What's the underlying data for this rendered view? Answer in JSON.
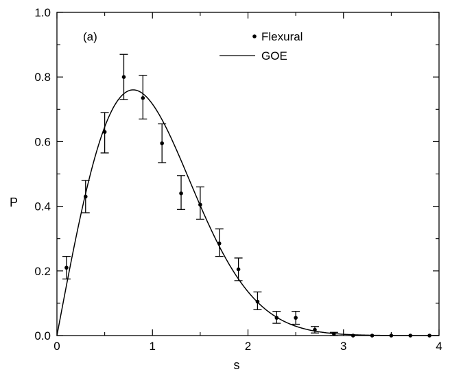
{
  "chart_data": {
    "type": "scatter",
    "panel_label": "(a)",
    "xlabel": "s",
    "ylabel": "P",
    "xlim": [
      0,
      4
    ],
    "ylim": [
      0,
      1.0
    ],
    "x_ticks": [
      0,
      1,
      2,
      3,
      4
    ],
    "x_tick_labels": [
      "0",
      "1",
      "2",
      "3",
      "4"
    ],
    "y_ticks": [
      0,
      0.2,
      0.4,
      0.6,
      0.8,
      1.0
    ],
    "y_tick_labels": [
      "0.0",
      "0.2",
      "0.4",
      "0.6",
      "0.8",
      "1.0"
    ],
    "legend_placement": "top-center",
    "grid": false,
    "series": [
      {
        "name": "Flexural",
        "kind": "points-with-errorbars",
        "color": "#000000",
        "points": [
          {
            "x": 0.1,
            "y": 0.21,
            "lo": 0.175,
            "hi": 0.245
          },
          {
            "x": 0.3,
            "y": 0.43,
            "lo": 0.38,
            "hi": 0.48
          },
          {
            "x": 0.5,
            "y": 0.63,
            "lo": 0.565,
            "hi": 0.69
          },
          {
            "x": 0.7,
            "y": 0.8,
            "lo": 0.73,
            "hi": 0.87
          },
          {
            "x": 0.9,
            "y": 0.735,
            "lo": 0.67,
            "hi": 0.805
          },
          {
            "x": 1.1,
            "y": 0.595,
            "lo": 0.535,
            "hi": 0.655
          },
          {
            "x": 1.3,
            "y": 0.44,
            "lo": 0.39,
            "hi": 0.495
          },
          {
            "x": 1.5,
            "y": 0.405,
            "lo": 0.36,
            "hi": 0.46
          },
          {
            "x": 1.7,
            "y": 0.285,
            "lo": 0.245,
            "hi": 0.33
          },
          {
            "x": 1.9,
            "y": 0.205,
            "lo": 0.17,
            "hi": 0.24
          },
          {
            "x": 2.1,
            "y": 0.105,
            "lo": 0.08,
            "hi": 0.135
          },
          {
            "x": 2.3,
            "y": 0.055,
            "lo": 0.038,
            "hi": 0.075
          },
          {
            "x": 2.5,
            "y": 0.055,
            "lo": 0.035,
            "hi": 0.075
          },
          {
            "x": 2.7,
            "y": 0.018,
            "lo": 0.008,
            "hi": 0.028
          },
          {
            "x": 2.9,
            "y": 0.005,
            "lo": 0.0,
            "hi": 0.01
          },
          {
            "x": 3.1,
            "y": 0.0
          },
          {
            "x": 3.3,
            "y": 0.0
          },
          {
            "x": 3.5,
            "y": 0.0
          },
          {
            "x": 3.7,
            "y": 0.0
          },
          {
            "x": 3.9,
            "y": 0.0
          }
        ]
      },
      {
        "name": "GOE",
        "kind": "line",
        "color": "#000000",
        "function": "wigner_surmise_goe"
      }
    ]
  }
}
